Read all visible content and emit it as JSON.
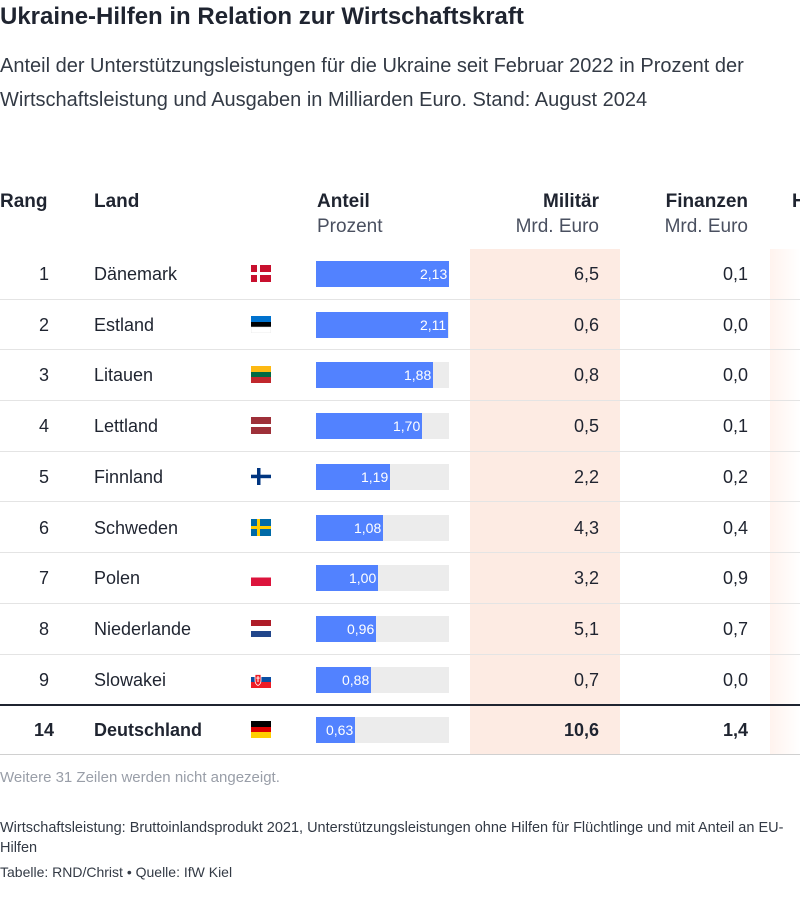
{
  "title": "Ukraine-Hilfen in Relation zur Wirtschaftskraft",
  "subtitle": "Anteil der Unterstützungsleistungen für die Ukraine seit Februar 2022 in Prozent der Wirtschaftsleistung und Ausgaben in Milliarden Euro. Stand: August 2024",
  "columns": {
    "rank": "Rang",
    "country": "Land",
    "share": "Anteil",
    "share_unit": "Prozent",
    "military": "Militär",
    "military_unit": "Mrd. Euro",
    "finance": "Finanzen",
    "finance_unit": "Mrd. Euro",
    "cut": "H"
  },
  "colors": {
    "bar": "#5282ff",
    "bar_track": "#ececec",
    "military_highlight": "#fdebe3"
  },
  "chart_data": {
    "type": "table",
    "bar_max": 2.13,
    "rows": [
      {
        "rank": "1",
        "country": "Dänemark",
        "flag": "flag-denmark-icon",
        "share": 2.13,
        "share_label": "2,13",
        "military": "6,5",
        "finance": "0,1"
      },
      {
        "rank": "2",
        "country": "Estland",
        "flag": "flag-estonia-icon",
        "share": 2.11,
        "share_label": "2,11",
        "military": "0,6",
        "finance": "0,0"
      },
      {
        "rank": "3",
        "country": "Litauen",
        "flag": "flag-lithuania-icon",
        "share": 1.88,
        "share_label": "1,88",
        "military": "0,8",
        "finance": "0,0"
      },
      {
        "rank": "4",
        "country": "Lettland",
        "flag": "flag-latvia-icon",
        "share": 1.7,
        "share_label": "1,70",
        "military": "0,5",
        "finance": "0,1"
      },
      {
        "rank": "5",
        "country": "Finnland",
        "flag": "flag-finland-icon",
        "share": 1.19,
        "share_label": "1,19",
        "military": "2,2",
        "finance": "0,2"
      },
      {
        "rank": "6",
        "country": "Schweden",
        "flag": "flag-sweden-icon",
        "share": 1.08,
        "share_label": "1,08",
        "military": "4,3",
        "finance": "0,4"
      },
      {
        "rank": "7",
        "country": "Polen",
        "flag": "flag-poland-icon",
        "share": 1.0,
        "share_label": "1,00",
        "military": "3,2",
        "finance": "0,9"
      },
      {
        "rank": "8",
        "country": "Niederlande",
        "flag": "flag-netherlands-icon",
        "share": 0.96,
        "share_label": "0,96",
        "military": "5,1",
        "finance": "0,7"
      },
      {
        "rank": "9",
        "country": "Slowakei",
        "flag": "flag-slovakia-icon",
        "share": 0.88,
        "share_label": "0,88",
        "military": "0,7",
        "finance": "0,0"
      },
      {
        "rank": "14",
        "country": "Deutschland",
        "flag": "flag-germany-icon",
        "share": 0.63,
        "share_label": "0,63",
        "military": "10,6",
        "finance": "1,4",
        "highlight": true
      }
    ]
  },
  "more_rows": "Weitere 31 Zeilen werden nicht angezeigt.",
  "note": "Wirtschaftsleistung: Bruttoinlandsprodukt 2021, Unterstützungsleistungen ohne Hilfen für Flüchtlinge und mit Anteil an EU-Hilfen",
  "credit": "Tabelle: RND/Christ • Quelle: IfW Kiel"
}
